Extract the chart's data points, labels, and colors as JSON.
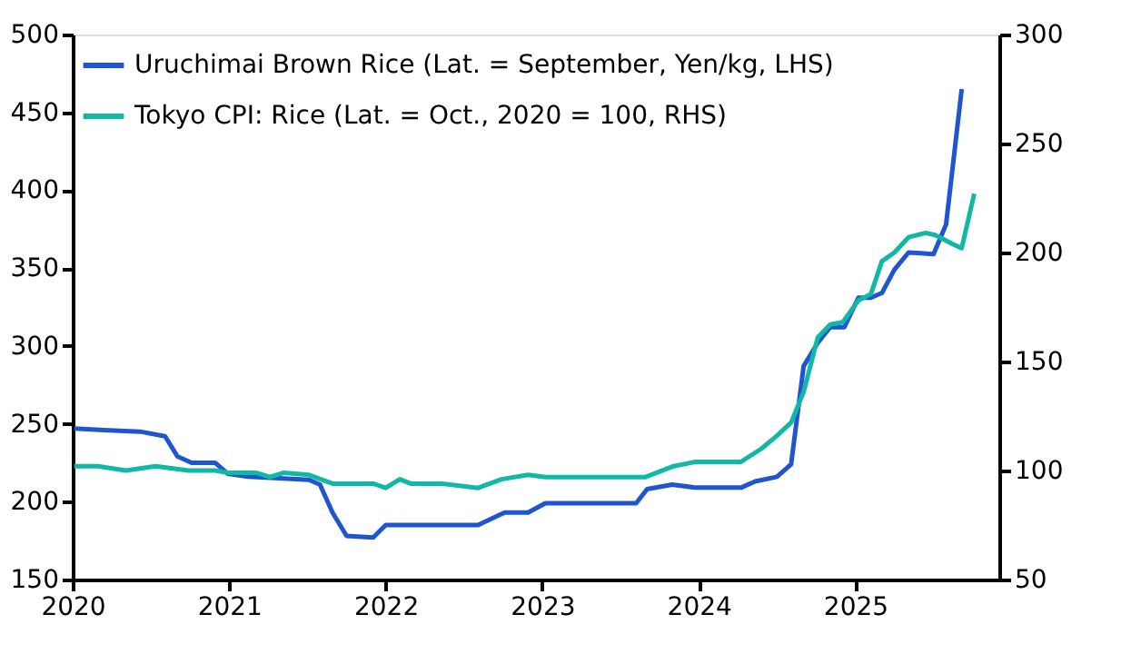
{
  "chart_data": {
    "type": "line",
    "xlim": [
      2020,
      2025.92
    ],
    "xticks": [
      2020,
      2021,
      2022,
      2023,
      2024,
      2025
    ],
    "ylim": [
      150,
      500
    ],
    "yticks": [
      150,
      200,
      250,
      300,
      350,
      400,
      450,
      500
    ],
    "y2lim": [
      50,
      300
    ],
    "y2ticks": [
      50,
      100,
      150,
      200,
      250,
      300
    ],
    "grid": false,
    "legend": "top left",
    "marker": "none",
    "line_style": "solid",
    "series": [
      {
        "name": "Uruchimai Brown Rice (Lat. = September, Yen/kg, LHS)",
        "color": "#1f55d0",
        "x": [
          2020.01,
          2020.2,
          2020.43,
          2020.59,
          2020.67,
          2020.76,
          2020.91,
          2020.99,
          2021.12,
          2021.32,
          2021.51,
          2021.58,
          2021.66,
          2021.75,
          2021.92,
          2022.0,
          2022.59,
          2022.76,
          2022.91,
          2023.02,
          2023.6,
          2023.67,
          2023.83,
          2023.98,
          2024.27,
          2024.36,
          2024.5,
          2024.59,
          2024.67,
          2024.76,
          2024.84,
          2024.93,
          2025.02,
          2025.1,
          2025.17,
          2025.25,
          2025.34,
          2025.5,
          2025.58,
          2025.68
        ],
        "values": [
          247,
          246,
          245,
          242,
          229,
          225,
          225,
          218,
          216,
          215,
          214,
          211,
          193,
          178,
          177,
          185,
          185,
          193,
          193,
          199,
          199,
          208,
          211,
          209,
          209,
          213,
          216,
          224,
          287,
          302,
          312,
          312,
          331,
          331,
          334,
          349,
          360,
          359,
          378,
          465
        ]
      },
      {
        "name": "Tokyo CPI: Rice (Lat. = Oct., 2020 = 100, RHS)",
        "color": "#12b8a6",
        "axis": "y2",
        "x": [
          2020.01,
          2020.16,
          2020.34,
          2020.53,
          2020.74,
          2020.91,
          2020.99,
          2021.17,
          2021.26,
          2021.35,
          2021.51,
          2021.66,
          2021.92,
          2022.0,
          2022.09,
          2022.16,
          2022.36,
          2022.59,
          2022.74,
          2022.91,
          2023.02,
          2023.66,
          2023.84,
          2023.98,
          2024.27,
          2024.4,
          2024.5,
          2024.59,
          2024.67,
          2024.76,
          2024.84,
          2024.92,
          2025.02,
          2025.1,
          2025.17,
          2025.25,
          2025.34,
          2025.45,
          2025.51,
          2025.62,
          2025.68,
          2025.76
        ],
        "values": [
          102,
          102,
          100,
          102,
          100,
          100,
          99,
          99,
          97,
          99,
          98,
          94,
          94,
          92,
          96,
          94,
          94,
          92,
          96,
          98,
          97,
          97,
          102,
          104,
          104,
          110,
          116,
          122,
          136,
          161,
          167,
          168,
          178,
          181,
          196,
          200,
          207,
          209,
          208,
          204,
          202,
          227
        ]
      }
    ]
  }
}
